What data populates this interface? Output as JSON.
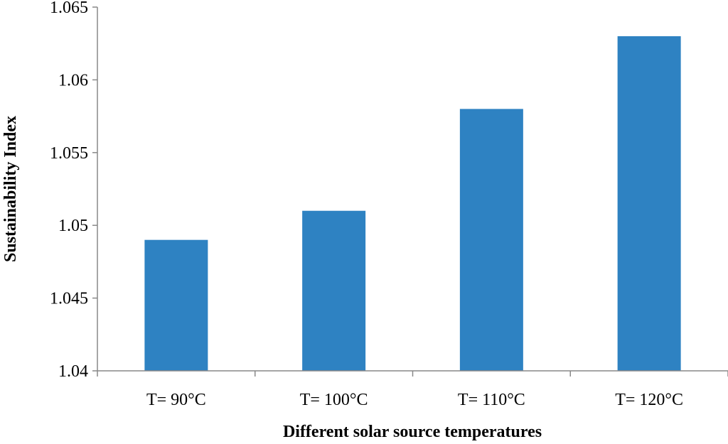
{
  "chart_data": {
    "type": "bar",
    "categories": [
      "T= 90°C",
      "T= 100°C",
      "T= 110°C",
      "T= 120°C"
    ],
    "values": [
      1.049,
      1.051,
      1.058,
      1.063
    ],
    "xlabel": "Different solar source temperatures",
    "ylabel": "Sustainability Index",
    "ylim": [
      1.04,
      1.065
    ],
    "yticks": [
      "1.04",
      "1.045",
      "1.05",
      "1.055",
      "1.06",
      "1.065"
    ],
    "bar_color": "#2E82C2",
    "grid": false,
    "legend": "none"
  }
}
